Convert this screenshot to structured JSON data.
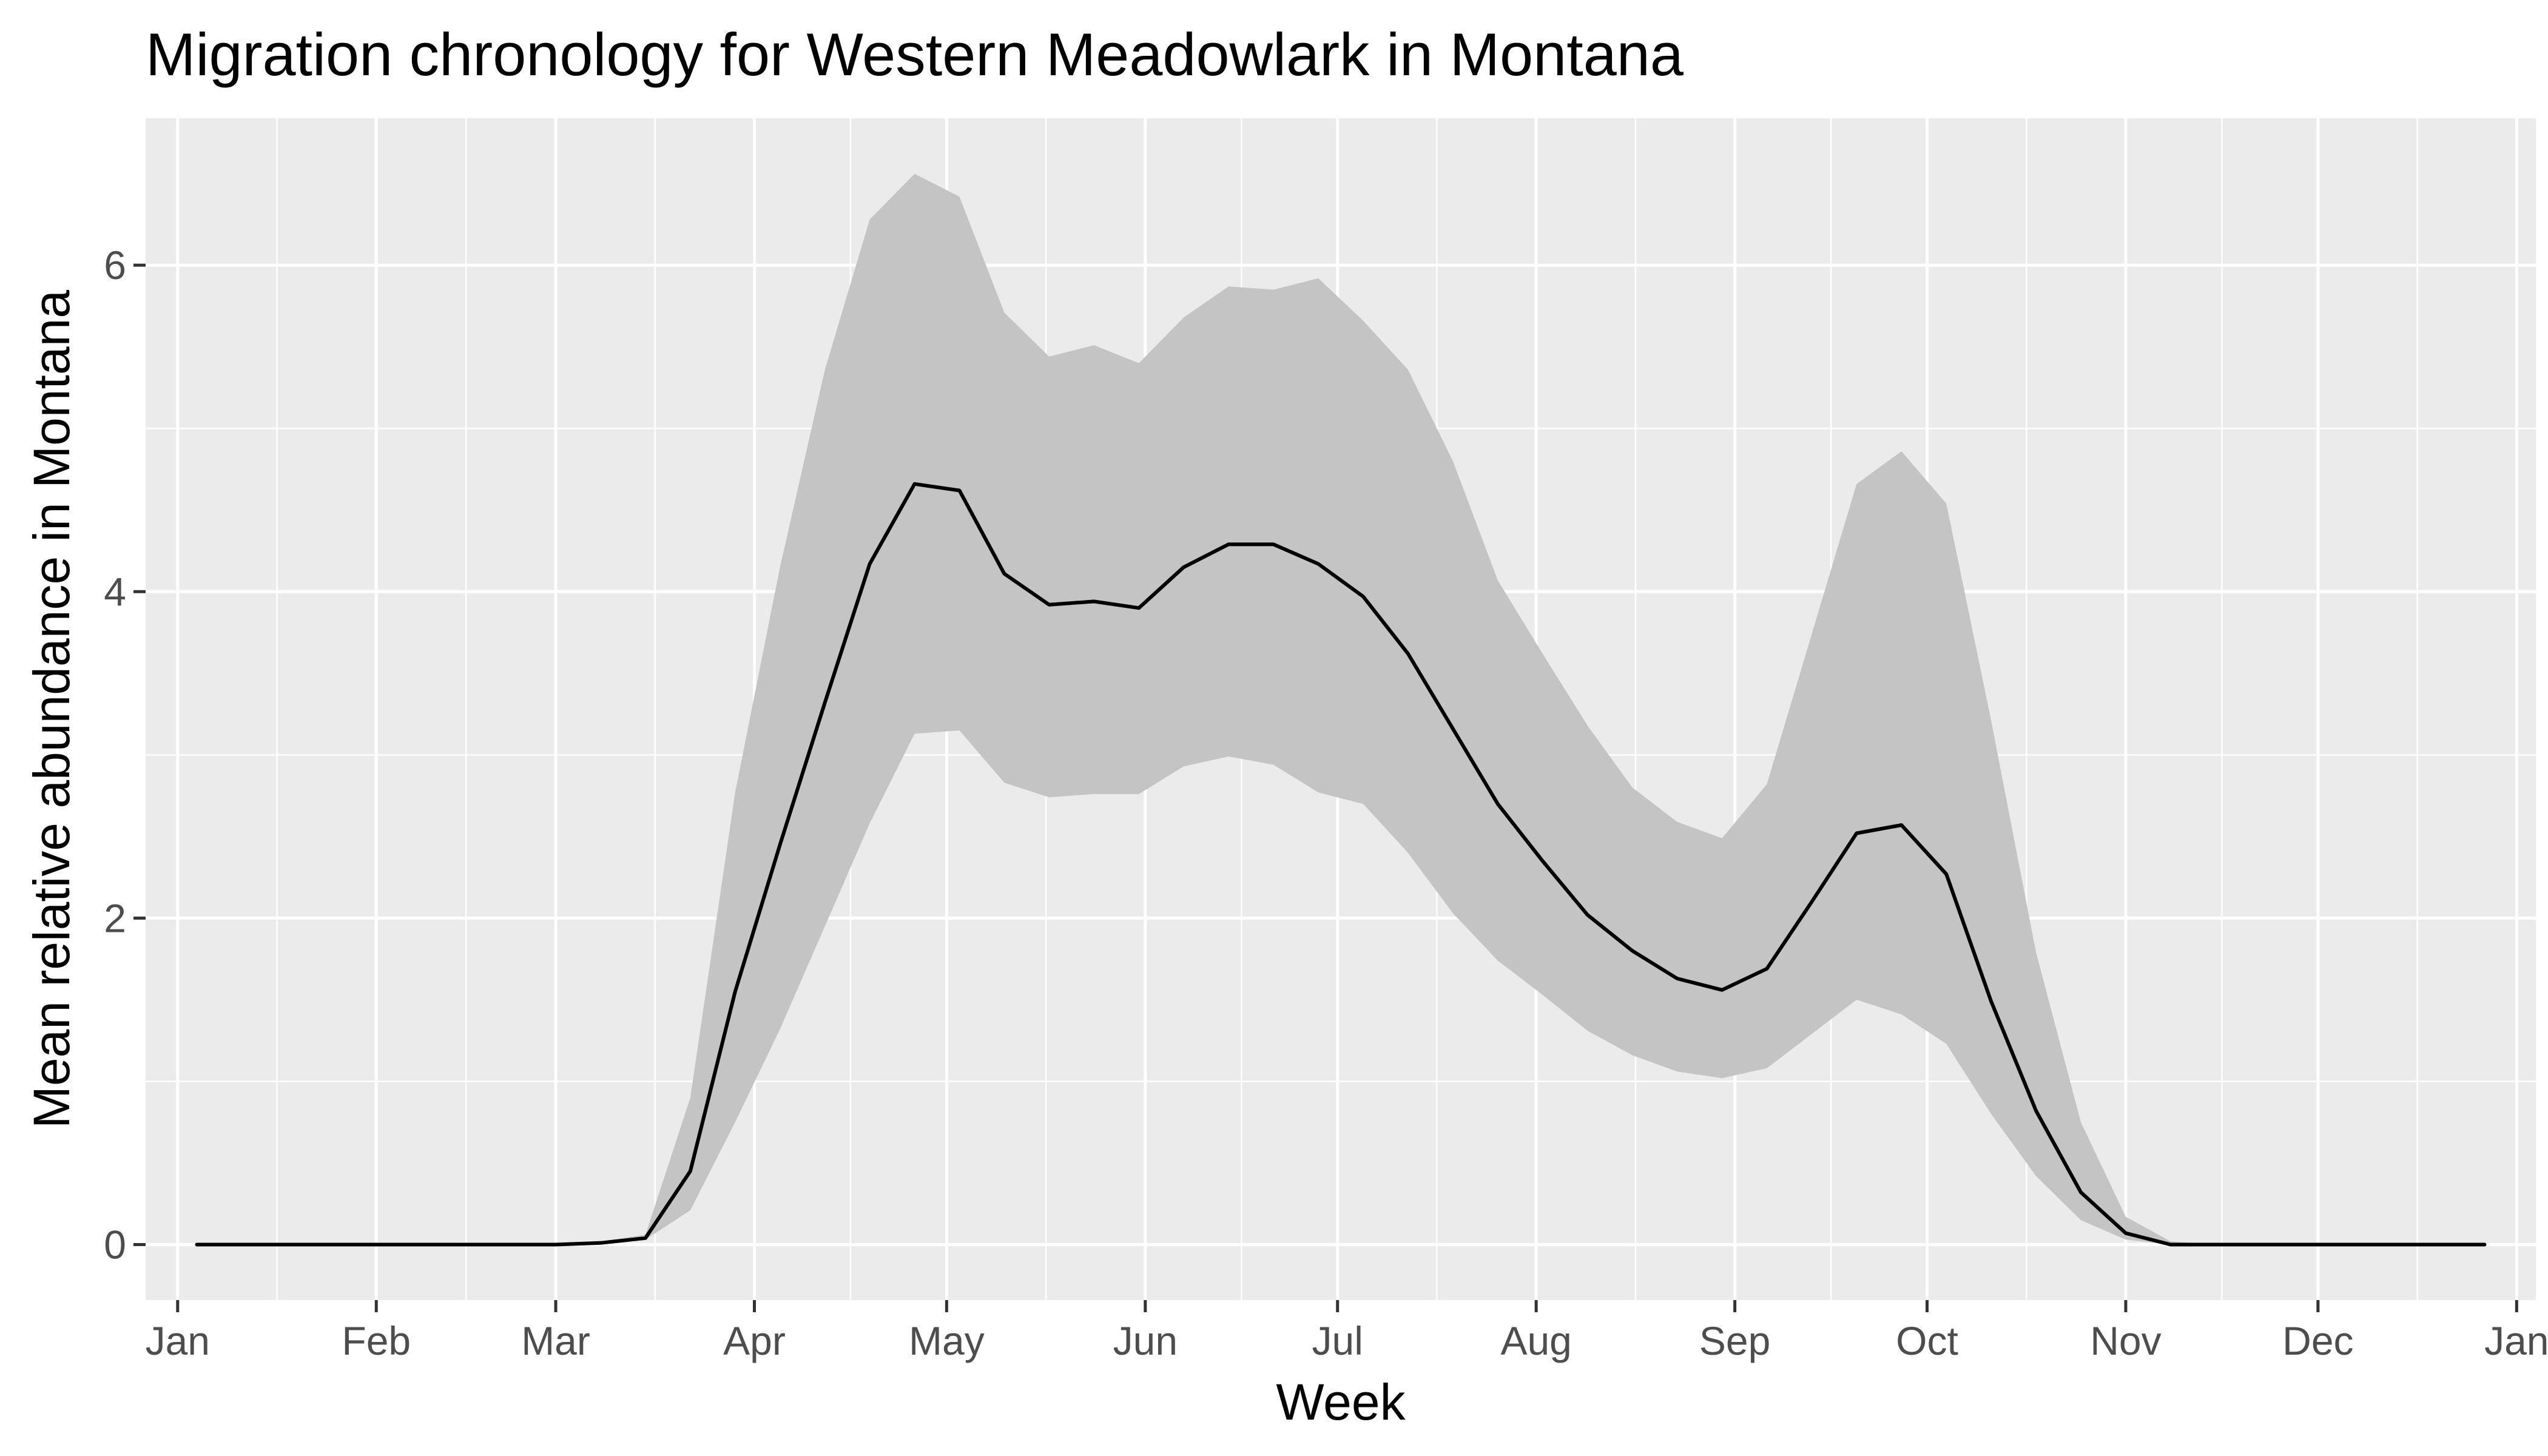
{
  "chart_data": {
    "type": "area",
    "title": "Migration chronology for Western Meadowlark in Montana",
    "xlabel": "Week",
    "ylabel": "Mean relative abundance in Montana",
    "x_axis": {
      "kind": "date",
      "range": [
        "2021-12-27",
        "2023-01-04"
      ],
      "tick_dates": [
        "2022-01-01",
        "2022-02-01",
        "2022-03-01",
        "2022-04-01",
        "2022-05-01",
        "2022-06-01",
        "2022-07-01",
        "2022-08-01",
        "2022-09-01",
        "2022-10-01",
        "2022-11-01",
        "2022-12-01",
        "2023-01-01"
      ],
      "tick_labels": [
        "Jan",
        "Feb",
        "Mar",
        "Apr",
        "May",
        "Jun",
        "Jul",
        "Aug",
        "Sep",
        "Oct",
        "Nov",
        "Dec",
        "Jan"
      ]
    },
    "y_axis": {
      "range": [
        -0.34,
        6.9
      ],
      "ticks": [
        0,
        2,
        4,
        6
      ],
      "tick_labels": [
        "0",
        "2",
        "4",
        "6"
      ]
    },
    "grid": true,
    "legend": "none",
    "colors": {
      "panel_background": "#ebebeb",
      "grid": "#ffffff",
      "ribbon": "#c4c4c4",
      "line": "#000000"
    },
    "x": [
      "2022-01-04",
      "2022-01-11",
      "2022-01-18",
      "2022-01-25",
      "2022-02-01",
      "2022-02-08",
      "2022-02-15",
      "2022-02-22",
      "2022-03-01",
      "2022-03-08",
      "2022-03-15",
      "2022-03-22",
      "2022-03-29",
      "2022-04-05",
      "2022-04-12",
      "2022-04-19",
      "2022-04-26",
      "2022-05-03",
      "2022-05-10",
      "2022-05-17",
      "2022-05-24",
      "2022-05-31",
      "2022-06-07",
      "2022-06-14",
      "2022-06-21",
      "2022-06-28",
      "2022-07-05",
      "2022-07-12",
      "2022-07-19",
      "2022-07-26",
      "2022-08-02",
      "2022-08-09",
      "2022-08-16",
      "2022-08-23",
      "2022-08-30",
      "2022-09-06",
      "2022-09-13",
      "2022-09-20",
      "2022-09-27",
      "2022-10-04",
      "2022-10-11",
      "2022-10-18",
      "2022-10-25",
      "2022-11-01",
      "2022-11-08",
      "2022-11-15",
      "2022-11-22",
      "2022-11-29",
      "2022-12-06",
      "2022-12-13",
      "2022-12-20",
      "2022-12-27"
    ],
    "series": [
      {
        "role": "mean",
        "values": [
          0,
          0,
          0,
          0,
          0,
          0,
          0,
          0,
          0,
          0.01,
          0.04,
          0.45,
          1.55,
          2.45,
          3.32,
          4.17,
          4.66,
          4.62,
          4.11,
          3.92,
          3.94,
          3.9,
          4.15,
          4.29,
          4.29,
          4.17,
          3.97,
          3.62,
          3.16,
          2.7,
          2.35,
          2.02,
          1.8,
          1.63,
          1.56,
          1.69,
          2.1,
          2.52,
          2.57,
          2.27,
          1.49,
          0.82,
          0.32,
          0.07,
          0,
          0,
          0,
          0,
          0,
          0,
          0,
          0
        ]
      },
      {
        "role": "lower",
        "values": [
          0,
          0,
          0,
          0,
          0,
          0,
          0,
          0,
          0,
          0.01,
          0.03,
          0.21,
          0.75,
          1.32,
          1.95,
          2.58,
          3.13,
          3.15,
          2.83,
          2.74,
          2.76,
          2.76,
          2.93,
          2.99,
          2.94,
          2.77,
          2.7,
          2.4,
          2.03,
          1.74,
          1.53,
          1.31,
          1.16,
          1.06,
          1.02,
          1.08,
          1.29,
          1.5,
          1.41,
          1.23,
          0.8,
          0.42,
          0.15,
          0.03,
          0,
          0,
          0,
          0,
          0,
          0,
          0,
          0
        ]
      },
      {
        "role": "upper",
        "values": [
          0,
          0,
          0,
          0,
          0,
          0,
          0,
          0,
          0,
          0.02,
          0.06,
          0.9,
          2.77,
          4.15,
          5.36,
          6.28,
          6.56,
          6.42,
          5.71,
          5.44,
          5.51,
          5.4,
          5.68,
          5.87,
          5.85,
          5.92,
          5.66,
          5.36,
          4.8,
          4.07,
          3.62,
          3.18,
          2.8,
          2.59,
          2.49,
          2.82,
          3.74,
          4.66,
          4.86,
          4.54,
          3.21,
          1.79,
          0.75,
          0.17,
          0.02,
          0,
          0,
          0,
          0,
          0,
          0,
          0
        ]
      }
    ]
  }
}
